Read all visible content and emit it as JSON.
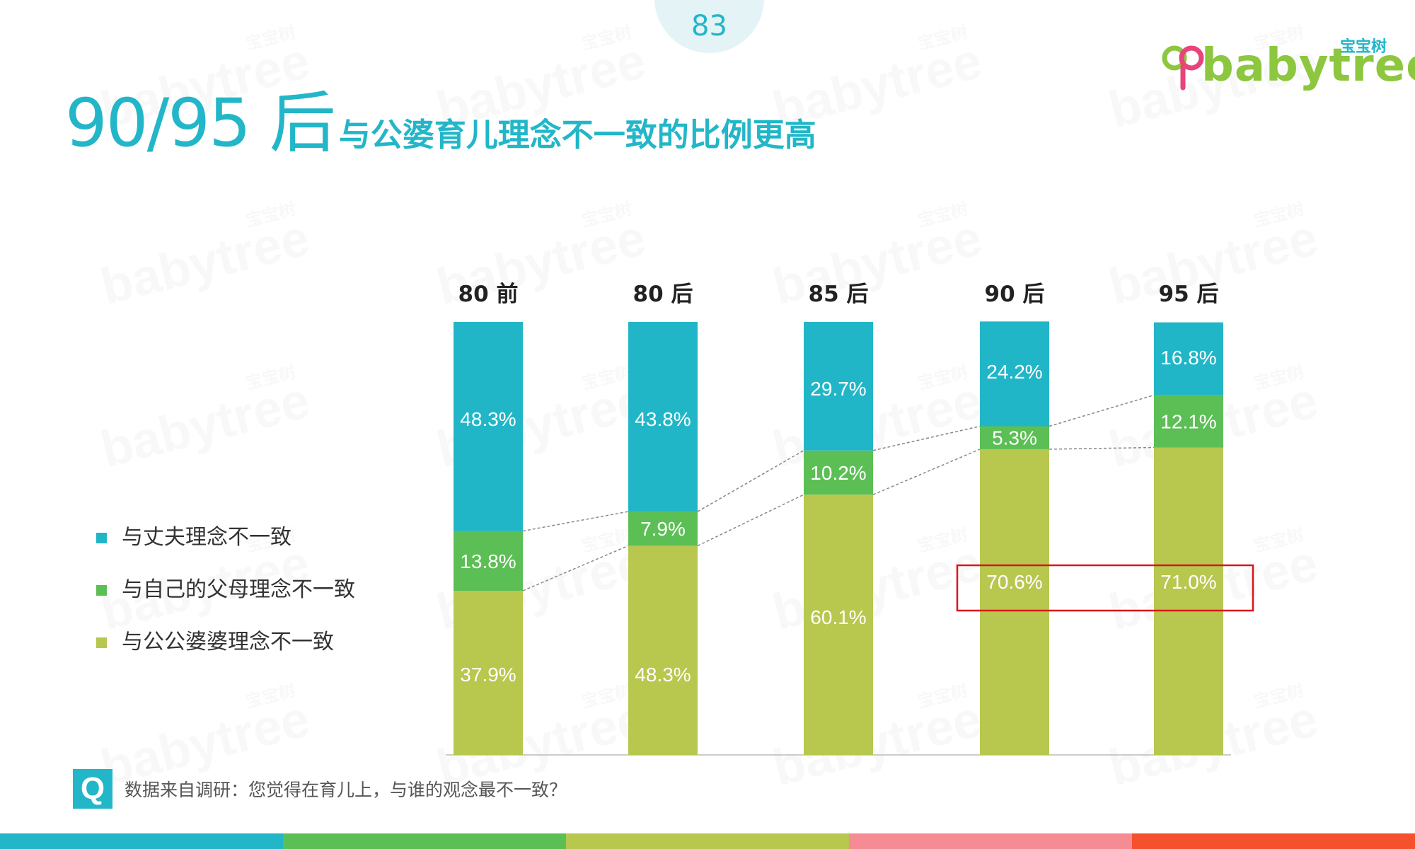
{
  "page_number": "83",
  "title": {
    "main": "90/95 后",
    "sub": "与公婆育儿理念不一致的比例更高"
  },
  "logo": {
    "cn": "宝宝树",
    "en": "babytree"
  },
  "watermark": {
    "cn": "宝宝树",
    "en": "babytree"
  },
  "colors": {
    "accent": "#22b6c8",
    "husband": "#21b6c7",
    "own_parents": "#5cbf55",
    "in_laws": "#b8c74e",
    "highlight_box": "#d9161c",
    "bottom_bar": [
      "#22b6c8",
      "#5cbf55",
      "#b8c74e",
      "#f58b93",
      "#f4512c"
    ]
  },
  "legend": [
    {
      "label": "与丈夫理念不一致",
      "color": "#21b6c7"
    },
    {
      "label": "与自己的父母理念不一致",
      "color": "#5cbf55"
    },
    {
      "label": "与公公婆婆理念不一致",
      "color": "#b8c74e"
    }
  ],
  "question": {
    "icon": "Q",
    "text": "数据来自调研：您觉得在育儿上，与谁的观念最不一致？"
  },
  "chart_data": {
    "type": "bar",
    "stacked": true,
    "categories": [
      "80 前",
      "80 后",
      "85 后",
      "90 后",
      "95 后"
    ],
    "series": [
      {
        "name": "与公公婆婆理念不一致",
        "color": "#b8c74e",
        "values": [
          37.9,
          48.3,
          60.1,
          70.6,
          71.0
        ],
        "labels": [
          "37.9%",
          "48.3%",
          "60.1%",
          "70.6%",
          "71.0%"
        ]
      },
      {
        "name": "与自己的父母理念不一致",
        "color": "#5cbf55",
        "values": [
          13.8,
          7.9,
          10.2,
          5.3,
          12.1
        ],
        "labels": [
          "13.8%",
          "7.9%",
          "10.2%",
          "5.3%",
          "12.1%"
        ]
      },
      {
        "name": "与丈夫理念不一致",
        "color": "#21b6c7",
        "values": [
          48.3,
          43.8,
          29.7,
          24.2,
          16.8
        ],
        "labels": [
          "48.3%",
          "43.8%",
          "29.7%",
          "24.2%",
          "16.8%"
        ]
      }
    ],
    "ylim": [
      0,
      100
    ],
    "connector_lines": true,
    "highlight": {
      "categories": [
        "90 后",
        "95 后"
      ],
      "series": "与公公婆婆理念不一致"
    }
  }
}
